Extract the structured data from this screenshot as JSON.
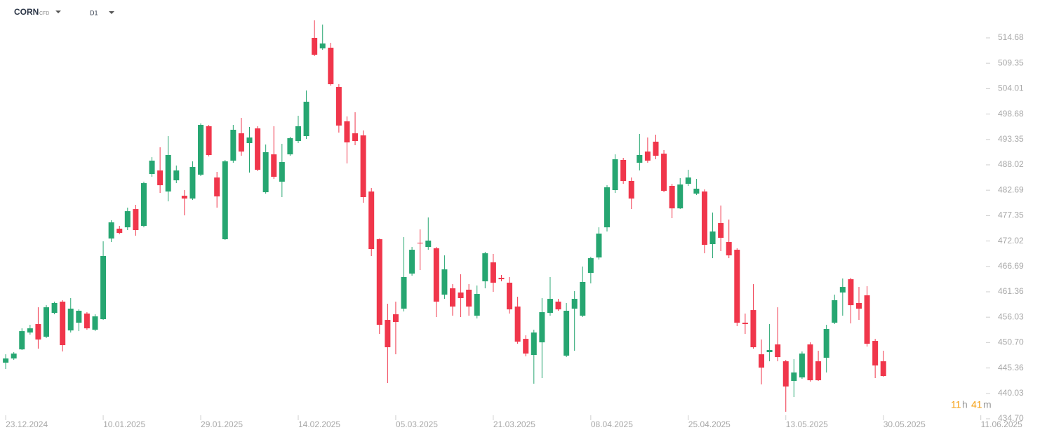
{
  "header": {
    "symbol": "CORN",
    "instrument_type": "CFD",
    "timeframe": "D1"
  },
  "countdown": {
    "hours": "11",
    "hours_unit": "h",
    "minutes": "41",
    "minutes_unit": "m"
  },
  "chart_data": {
    "type": "candlestick",
    "up_color": "#26a671",
    "down_color": "#f0364b",
    "open": [
      446.48,
      447.36,
      449.27,
      452.81,
      454.58,
      451.93,
      456.93,
      459.29,
      453.25,
      454.87,
      456.79,
      453.4,
      455.61,
      472.55,
      474.61,
      474.9,
      478.73,
      475.2,
      486.1,
      486.84,
      482.42,
      484.77,
      481.53,
      480.94,
      485.95,
      496.12,
      485.36,
      472.4,
      488.9,
      494.64,
      492.58,
      495.67,
      482.27,
      490.22,
      484.48,
      490.22,
      493.02,
      494.05,
      514.68,
      512.47,
      512.61,
      504.36,
      497.15,
      494.64,
      494.2,
      482.42,
      472.4,
      455.46,
      456.64,
      457.82,
      465.18,
      471.66,
      470.78,
      470.49,
      460.76,
      462.09,
      461.21,
      461.8,
      456.34,
      463.56,
      467.54,
      464.3,
      463.27,
      458.26,
      451.48,
      448.1,
      450.75,
      456.93,
      459.29,
      447.95,
      457.82,
      456.34,
      465.33,
      468.57,
      474.9,
      482.71,
      489.05,
      484.63,
      488.46,
      490.81,
      492.88,
      490.37,
      483.6,
      478.88,
      484.04,
      481.98,
      482.42,
      471.37,
      475.79,
      471.81,
      470.19,
      454.87,
      457.52,
      448.24,
      448.69,
      450.31,
      446.77,
      442.65,
      443.38,
      450.31,
      446.77,
      447.51,
      454.87,
      461.21,
      464.0,
      459.0,
      460.62,
      451.04,
      446.77
    ],
    "high": [
      448.24,
      448.69,
      453.69,
      454.43,
      458.11,
      458.55,
      459.29,
      459.59,
      460.03,
      457.67,
      457.08,
      456.64,
      471.96,
      476.38,
      475.2,
      479.03,
      479.62,
      484.48,
      489.63,
      491.7,
      494.05,
      487.87,
      482.71,
      488.75,
      496.71,
      496.41,
      486.54,
      489.05,
      496.41,
      497.88,
      495.97,
      496.12,
      492.29,
      496.12,
      492.43,
      493.91,
      498.33,
      503.63,
      518.36,
      517.47,
      513.64,
      504.95,
      498.18,
      499.06,
      495.23,
      483.15,
      472.55,
      458.85,
      459.29,
      472.84,
      470.78,
      474.46,
      476.97,
      470.78,
      469.01,
      462.97,
      465.04,
      462.97,
      462.68,
      469.75,
      469.31,
      464.89,
      464.45,
      460.32,
      452.22,
      453.4,
      460.03,
      464.45,
      459.88,
      459.0,
      461.5,
      466.66,
      468.72,
      474.9,
      483.74,
      490.22,
      489.49,
      485.36,
      494.5,
      493.76,
      494.35,
      491.11,
      484.04,
      485.22,
      486.98,
      485.07,
      482.86,
      478.0,
      479.47,
      476.53,
      470.49,
      456.79,
      462.97,
      451.34,
      454.58,
      458.11,
      447.07,
      447.21,
      448.83,
      450.75,
      448.98,
      454.43,
      460.76,
      464.15,
      464.3,
      462.38,
      462.53,
      451.48,
      448.98
    ],
    "low": [
      445.15,
      447.07,
      449.13,
      452.37,
      449.42,
      451.63,
      456.64,
      448.83,
      452.81,
      453.1,
      453.4,
      453.1,
      455.46,
      471.81,
      473.43,
      474.32,
      473.14,
      474.9,
      485.51,
      482.12,
      480.35,
      484.18,
      477.41,
      480.65,
      485.66,
      489.78,
      479.03,
      472.25,
      488.46,
      489.93,
      486.39,
      486.69,
      481.98,
      485.07,
      481.24,
      489.93,
      492.58,
      493.46,
      510.85,
      512.17,
      504.66,
      494.79,
      488.31,
      492.14,
      480.06,
      468.87,
      452.52,
      442.2,
      448.24,
      457.23,
      464.74,
      465.92,
      470.19,
      456.05,
      459.88,
      456.34,
      456.05,
      456.34,
      455.76,
      462.09,
      461.35,
      463.56,
      456.79,
      450.45,
      447.8,
      442.06,
      443.24,
      456.34,
      457.38,
      447.65,
      448.98,
      456.05,
      463.12,
      468.13,
      474.02,
      482.12,
      484.04,
      478.73,
      486.84,
      488.46,
      489.19,
      482.27,
      476.82,
      478.73,
      483.6,
      481.68,
      469.45,
      468.42,
      469.9,
      468.42,
      454.14,
      452.52,
      449.42,
      441.91,
      446.77,
      446.77,
      436.16,
      439.26,
      443.09,
      442.5,
      442.65,
      444.41,
      454.58,
      456.34,
      454.72,
      455.46,
      449.86,
      443.24,
      443.53
    ],
    "close": [
      447.36,
      448.39,
      453.1,
      453.69,
      451.34,
      458.11,
      459.0,
      450.16,
      457.82,
      457.38,
      453.69,
      456.2,
      468.87,
      475.94,
      473.73,
      478.29,
      474.32,
      484.18,
      488.9,
      483.74,
      490.08,
      486.84,
      480.94,
      487.57,
      496.41,
      490.08,
      481.39,
      488.75,
      495.38,
      490.81,
      493.76,
      486.98,
      490.67,
      485.51,
      488.6,
      493.61,
      496.12,
      501.27,
      511.14,
      513.5,
      504.95,
      496.26,
      492.73,
      493.02,
      481.24,
      470.34,
      454.43,
      449.72,
      455.02,
      464.45,
      470.19,
      471.52,
      472.11,
      459.29,
      466.07,
      458.26,
      460.03,
      458.26,
      460.91,
      469.45,
      463.27,
      464.0,
      457.67,
      450.89,
      448.39,
      452.81,
      457.08,
      459.88,
      457.67,
      457.38,
      459.88,
      463.42,
      468.42,
      473.58,
      483.3,
      489.19,
      484.63,
      480.94,
      490.08,
      488.9,
      489.93,
      482.56,
      478.88,
      483.89,
      485.36,
      483.01,
      471.22,
      474.02,
      472.7,
      469.01,
      454.87,
      454.58,
      449.72,
      445.44,
      449.13,
      447.65,
      441.47,
      444.41,
      448.39,
      442.79,
      442.79,
      453.55,
      459.59,
      462.38,
      458.55,
      457.82,
      450.45,
      445.89,
      443.68
    ],
    "xlim": [
      -0.7,
      120.2
    ],
    "xticks": [
      {
        "value": 0,
        "label": "23.12.2024"
      },
      {
        "value": 12,
        "label": "10.01.2025"
      },
      {
        "value": 24,
        "label": "29.01.2025"
      },
      {
        "value": 36,
        "label": "14.02.2025"
      },
      {
        "value": 48,
        "label": "05.03.2025"
      },
      {
        "value": 60,
        "label": "21.03.2025"
      },
      {
        "value": 72,
        "label": "08.04.2025"
      },
      {
        "value": 84,
        "label": "25.04.2025"
      },
      {
        "value": 96,
        "label": "13.05.2025"
      },
      {
        "value": 108,
        "label": "30.05.2025"
      },
      {
        "value": 120,
        "label": "11.06.2025"
      }
    ],
    "ylim": [
      434.7,
      522.63
    ],
    "yticks": [
      514.68,
      509.35,
      504.01,
      498.68,
      493.35,
      488.02,
      482.69,
      477.35,
      472.02,
      466.69,
      461.36,
      456.03,
      {
        "value": 450.7,
        "label": "450.70"
      },
      445.36,
      440.03,
      {
        "value": 434.7,
        "label": "434.70"
      }
    ]
  }
}
